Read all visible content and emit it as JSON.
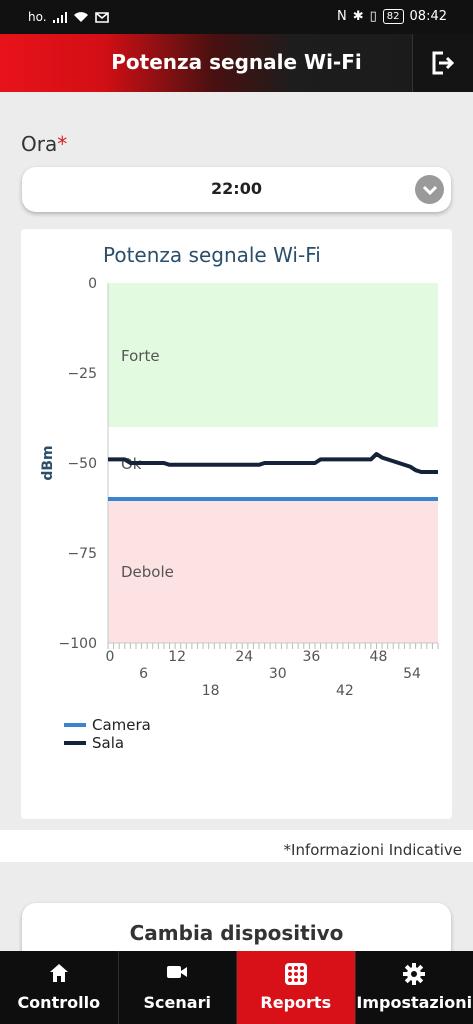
{
  "status_bar": {
    "carrier": "ho.",
    "time": "08:42",
    "battery": "82"
  },
  "header": {
    "title": "Potenza segnale Wi-Fi",
    "exit_icon": "logout-icon"
  },
  "form": {
    "label": "Ora",
    "required_mark": "*",
    "selected_value": "22:00"
  },
  "colors": {
    "accent_red": "#d81118",
    "camera": "#3a83cf",
    "sala": "#14233a",
    "forte": "#e2fbe0",
    "debole": "#fde2e4"
  },
  "chart_data": {
    "type": "line",
    "title": "Potenza segnale Wi-Fi",
    "ylabel": "dBm",
    "ylim": [
      -100,
      0
    ],
    "xlim": [
      0,
      59
    ],
    "yticks": [
      0,
      -25,
      -50,
      -75,
      -100
    ],
    "xticks": [
      0,
      6,
      12,
      18,
      24,
      30,
      36,
      42,
      48,
      54
    ],
    "bands": [
      {
        "label": "Forte",
        "from": 0,
        "to": -40
      },
      {
        "label": "Ok",
        "from": -40,
        "to": -60
      },
      {
        "label": "Debole",
        "from": -60,
        "to": -100
      }
    ],
    "series": [
      {
        "name": "Camera",
        "x": [
          0,
          59
        ],
        "y": [
          -60,
          -60
        ]
      },
      {
        "name": "Sala",
        "x": [
          0,
          3,
          4,
          10,
          11,
          27,
          28,
          37,
          38,
          47,
          48,
          49,
          50,
          52,
          54,
          55,
          56,
          59
        ],
        "y": [
          -49,
          -49,
          -50,
          -50,
          -50.5,
          -50.5,
          -50,
          -50,
          -49,
          -49,
          -47.5,
          -48.5,
          -49,
          -50,
          -51,
          -52,
          -52.5,
          -52.5
        ]
      }
    ],
    "legend_position": "bottom-left",
    "grid": false
  },
  "footer": {
    "note": "*Informazioni Indicative",
    "change_device": "Cambia dispositivo"
  },
  "tabs": [
    {
      "label": "Controllo",
      "icon": "home-icon"
    },
    {
      "label": "Scenari",
      "icon": "video-camera-icon"
    },
    {
      "label": "Reports",
      "icon": "grid-icon",
      "active": true
    },
    {
      "label": "Impostazioni",
      "icon": "gear-icon"
    }
  ]
}
